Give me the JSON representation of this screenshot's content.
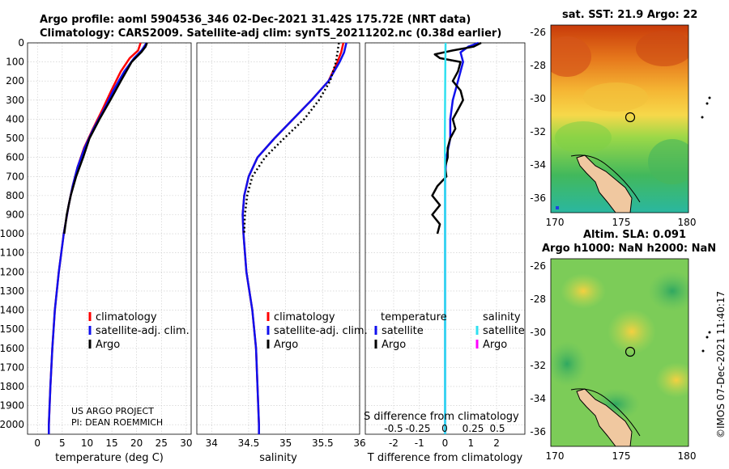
{
  "title_line1": "Argo profile: aoml 5904536_346 02-Dec-2021 31.42S 175.72E (NRT data)",
  "title_line2": "Climatology: CARS2009. Satellite-adj clim: synTS_20211202.nc (0.38d earlier)",
  "depth_ticks": [
    "0",
    "100",
    "200",
    "300",
    "400",
    "500",
    "600",
    "700",
    "800",
    "900",
    "1000",
    "1100",
    "1200",
    "1300",
    "1400",
    "1500",
    "1600",
    "1700",
    "1800",
    "1900",
    "2000"
  ],
  "colors": {
    "climatology": "#ff0000",
    "satellite": "#1010ee",
    "argo": "#000000",
    "sat_salinity": "#30e0f0",
    "argo_salinity": "#ff00ff"
  },
  "chart_data": [
    {
      "type": "line",
      "name": "temperature",
      "xlabel": "temperature (deg C)",
      "xlim": [
        -2,
        31
      ],
      "ylim": [
        2050,
        0
      ],
      "xticks": [
        0,
        5,
        10,
        15,
        20,
        25,
        30
      ],
      "legend": [
        "climatology",
        "satellite-adj. clim.",
        "Argo"
      ],
      "credit": [
        "US ARGO PROJECT",
        "PI: DEAN ROEMMICH"
      ],
      "series": [
        {
          "name": "climatology",
          "depth": [
            0,
            40,
            80,
            150,
            250,
            350,
            450,
            550,
            650,
            750,
            850,
            1000,
            1200,
            1400,
            1600,
            1800,
            2000,
            2050
          ],
          "values": [
            20.8,
            20.3,
            18.6,
            16.8,
            14.9,
            13.1,
            11.2,
            9.4,
            8.1,
            7.1,
            6.3,
            5.3,
            4.3,
            3.5,
            3.0,
            2.6,
            2.3,
            2.3
          ]
        },
        {
          "name": "satellite-adj. clim.",
          "depth": [
            0,
            40,
            80,
            150,
            250,
            350,
            450,
            550,
            650,
            750,
            850,
            1000,
            1200,
            1400,
            1600,
            1800,
            2000,
            2050
          ],
          "values": [
            22.0,
            21.0,
            19.5,
            17.5,
            15.3,
            13.4,
            11.3,
            9.5,
            8.1,
            7.1,
            6.3,
            5.3,
            4.3,
            3.5,
            3.0,
            2.6,
            2.3,
            2.3
          ]
        },
        {
          "name": "Argo",
          "depth": [
            0,
            20,
            50,
            100,
            200,
            300,
            400,
            500,
            600,
            700,
            800,
            900,
            1000
          ],
          "values": [
            22.1,
            21.8,
            20.9,
            19.0,
            16.8,
            14.7,
            12.5,
            10.5,
            9.2,
            7.8,
            6.7,
            5.9,
            5.4
          ]
        }
      ]
    },
    {
      "type": "line",
      "name": "salinity",
      "xlabel": "salinity",
      "xlim": [
        33.8,
        36.0
      ],
      "ylim": [
        2050,
        0
      ],
      "xticks": [
        34,
        34.5,
        35,
        35.5,
        36
      ],
      "legend": [
        "climatology",
        "satellite-adj. clim.",
        "Argo"
      ],
      "series": [
        {
          "name": "climatology",
          "depth": [
            0,
            50,
            100,
            200,
            300,
            400,
            500,
            600,
            700,
            800,
            900,
            1000,
            1200,
            1400,
            1600,
            1800,
            2000,
            2050
          ],
          "values": [
            35.78,
            35.75,
            35.7,
            35.58,
            35.35,
            35.1,
            34.85,
            34.62,
            34.5,
            34.44,
            34.42,
            34.43,
            34.47,
            34.55,
            34.6,
            34.62,
            34.64,
            34.64
          ]
        },
        {
          "name": "satellite-adj. clim.",
          "depth": [
            0,
            50,
            100,
            200,
            300,
            400,
            500,
            600,
            700,
            800,
            900,
            1000,
            1200,
            1400,
            1600,
            1800,
            2000,
            2050
          ],
          "values": [
            35.82,
            35.79,
            35.73,
            35.58,
            35.35,
            35.1,
            34.85,
            34.62,
            34.5,
            34.44,
            34.42,
            34.43,
            34.47,
            34.55,
            34.6,
            34.62,
            34.64,
            34.64
          ]
        },
        {
          "name": "Argo",
          "depth": [
            0,
            50,
            100,
            200,
            300,
            400,
            500,
            600,
            700,
            800,
            900,
            1000
          ],
          "values": [
            35.72,
            35.7,
            35.68,
            35.6,
            35.45,
            35.25,
            34.98,
            34.72,
            34.55,
            34.48,
            34.45,
            34.44
          ]
        }
      ]
    },
    {
      "type": "line",
      "name": "T difference from climatology",
      "xlabel": "T difference from climatology",
      "xlim": [
        -3.1,
        3.1
      ],
      "ylim": [
        2050,
        0
      ],
      "xticks": [
        -2,
        -1,
        0,
        1,
        2
      ],
      "xlabel2": "S difference from climatology",
      "xticks2": [
        "-0.5",
        "-0.25",
        "0",
        "0.25",
        "0.5"
      ],
      "legend_temperature": {
        "title": "temperature",
        "items": [
          "satellite",
          "Argo"
        ]
      },
      "legend_salinity": {
        "title": "salinity",
        "items": [
          "satellite",
          "Argo"
        ]
      },
      "series": [
        {
          "name": "T satellite",
          "depth": [
            0,
            20,
            50,
            100,
            200,
            300,
            400,
            500,
            600,
            700,
            800,
            1000,
            1500,
            2000,
            2050
          ],
          "values": [
            1.3,
            0.9,
            0.6,
            0.7,
            0.5,
            0.3,
            0.2,
            0.2,
            0.05,
            0.0,
            0.0,
            0.0,
            0.0,
            0.0,
            0.0
          ]
        },
        {
          "name": "T Argo",
          "depth": [
            0,
            20,
            40,
            60,
            80,
            100,
            150,
            200,
            250,
            300,
            350,
            400,
            450,
            500,
            550,
            600,
            650,
            700,
            750,
            800,
            850,
            900,
            950,
            1000
          ],
          "values": [
            1.4,
            1.1,
            0.3,
            -0.4,
            -0.2,
            0.6,
            0.5,
            0.3,
            0.6,
            0.7,
            0.5,
            0.3,
            0.4,
            0.2,
            0.1,
            0.1,
            0.0,
            0.05,
            -0.3,
            -0.5,
            -0.2,
            -0.5,
            -0.2,
            -0.3
          ]
        },
        {
          "name": "S satellite",
          "depth": [
            0,
            100,
            300,
            500,
            800,
            1000,
            1500,
            2000,
            2050
          ],
          "values": [
            0.02,
            0.01,
            0.0,
            -0.01,
            0.0,
            0.0,
            0.0,
            0.0,
            0.0
          ]
        }
      ]
    },
    {
      "type": "heatmap",
      "name": "sat. SST map",
      "title": "sat. SST: 21.9 Argo: 22",
      "xticks": [
        "170",
        "175",
        "180"
      ],
      "yticks": [
        "-26",
        "-28",
        "-30",
        "-32",
        "-34",
        "-36"
      ]
    },
    {
      "type": "heatmap",
      "name": "altimetry SLA map",
      "title_line1": "Altim. SLA: 0.091",
      "title_line2": "Argo h1000: NaN h2000: NaN",
      "xticks": [
        "170",
        "175",
        "180"
      ],
      "yticks": [
        "-26",
        "-28",
        "-30",
        "-32",
        "-34",
        "-36"
      ]
    }
  ],
  "timestamp": "©IMOS 07-Dec-2021 11:40:17"
}
